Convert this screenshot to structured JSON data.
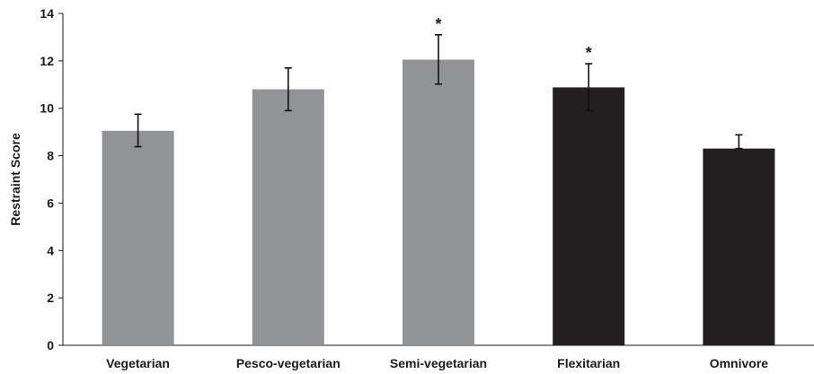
{
  "chart_data": {
    "type": "bar",
    "title": "",
    "xlabel": "",
    "ylabel": "Restraint Score",
    "ylim": [
      0,
      14
    ],
    "yticks": [
      0,
      2,
      4,
      6,
      8,
      10,
      12,
      14
    ],
    "grid": false,
    "legend": "none",
    "categories": [
      "Vegetarian",
      "Pesco-vegetarian",
      "Semi-vegetarian",
      "Flexitarian",
      "Omnivore"
    ],
    "values": [
      9.05,
      10.8,
      12.05,
      10.88,
      8.3
    ],
    "error_upper": [
      9.75,
      11.7,
      13.1,
      11.88,
      8.88
    ],
    "error_lower": [
      8.38,
      9.9,
      11.02,
      9.9,
      8.3
    ],
    "bar_colors": [
      "#929396",
      "#929396",
      "#929396",
      "#231f20",
      "#231f20"
    ],
    "annotations": [
      {
        "category": "Semi-vegetarian",
        "text": "*"
      },
      {
        "category": "Flexitarian",
        "text": "*"
      }
    ]
  }
}
